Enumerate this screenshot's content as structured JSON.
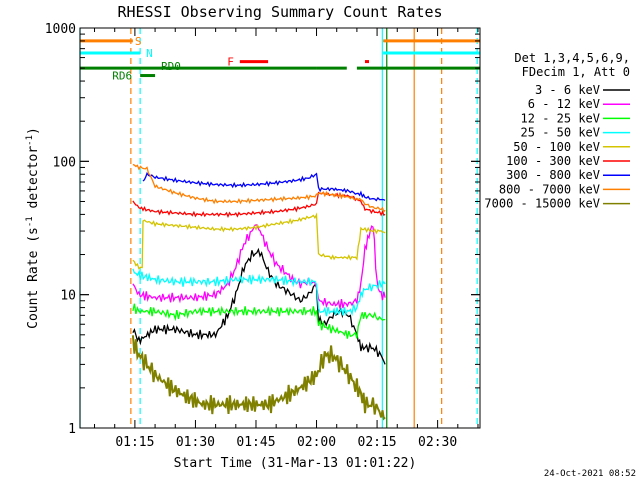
{
  "chart_data": {
    "type": "line",
    "title": "RHESSI Observing Summary Count Rates",
    "xlabel": "Start Time (31-Mar-13 01:01:22)",
    "ylabel_parts": [
      "Count Rate (s",
      "-1",
      " detector",
      "-1",
      ")"
    ],
    "yscale": "log",
    "ylim": [
      1,
      1000
    ],
    "xlim_minutes": [
      61.4,
      160.5
    ],
    "x_ticks": [
      {
        "label": "01:15",
        "min": 75
      },
      {
        "label": "01:30",
        "min": 90
      },
      {
        "label": "01:45",
        "min": 105
      },
      {
        "label": "02:00",
        "min": 120
      },
      {
        "label": "02:15",
        "min": 135
      },
      {
        "label": "02:30",
        "min": 150
      }
    ],
    "y_ticks": [
      {
        "label": "1",
        "value": 1
      },
      {
        "label": "10",
        "value": 10
      },
      {
        "label": "100",
        "value": 100
      },
      {
        "label": "1000",
        "value": 1000
      }
    ],
    "legend_header": [
      "Det 1,3,4,5,6,9,",
      "FDecim 1, Att 0"
    ],
    "legend_position": "right",
    "series": [
      {
        "name": "3 - 6 keV",
        "color": "#000000",
        "x": [
          74.5,
          76,
          80,
          85,
          90,
          95,
          98,
          100,
          102,
          104,
          106,
          108,
          110,
          112,
          114,
          116,
          118,
          120,
          120.5,
          122,
          124,
          126,
          128,
          130,
          131,
          132,
          134,
          136,
          137
        ],
        "y": [
          5.5,
          4.5,
          5.5,
          5.5,
          5.0,
          5.0,
          7.0,
          10,
          16,
          20,
          21,
          15,
          12,
          11,
          10,
          9,
          10,
          12,
          6.5,
          6.0,
          7.0,
          7.5,
          7.0,
          5.0,
          4.0,
          4.0,
          4.0,
          3.5,
          3.0
        ]
      },
      {
        "name": "6 - 12 keV",
        "color": "#ff00ff",
        "x": [
          74.5,
          76,
          80,
          85,
          90,
          95,
          98,
          100,
          102,
          104,
          105,
          106,
          108,
          110,
          112,
          114,
          116,
          118,
          120,
          120.5,
          124,
          128,
          130,
          131,
          132,
          133,
          134,
          135,
          136,
          137
        ],
        "y": [
          12,
          10,
          9.5,
          9.5,
          9.5,
          10,
          12,
          16,
          24,
          30,
          34,
          30,
          22,
          17,
          15,
          13,
          12,
          12.5,
          12,
          9.0,
          8.5,
          8.5,
          9.0,
          12,
          22,
          28,
          34,
          12,
          10,
          9.5
        ]
      },
      {
        "name": "12 - 25 keV",
        "color": "#00ff00",
        "x": [
          74.5,
          76,
          80,
          85,
          90,
          95,
          100,
          105,
          110,
          115,
          120,
          120.5,
          124,
          128,
          130,
          131,
          132,
          134,
          136,
          137
        ],
        "y": [
          8.0,
          7.5,
          7.5,
          7.0,
          7.5,
          7.5,
          7.5,
          7.5,
          7.5,
          7.5,
          7.5,
          6.0,
          5.5,
          5.0,
          5.0,
          7.0,
          7.0,
          7.0,
          6.5,
          6.5
        ]
      },
      {
        "name": "25 - 50 keV",
        "color": "#00ffff",
        "x": [
          74.5,
          76,
          80,
          85,
          90,
          95,
          100,
          105,
          110,
          115,
          120,
          120.5,
          124,
          128,
          130,
          131,
          132,
          134,
          136,
          137
        ],
        "y": [
          15,
          14,
          13,
          12.5,
          12.5,
          12.5,
          13,
          13,
          13,
          12.5,
          12.5,
          7.5,
          7.5,
          7.5,
          8.0,
          10,
          11,
          11.5,
          12,
          12
        ]
      },
      {
        "name": "50 - 100 keV",
        "color": "#d4c400",
        "x": [
          74.5,
          76,
          76.8,
          77,
          80,
          85,
          90,
          95,
          100,
          105,
          110,
          115,
          118,
          120,
          120.5,
          124,
          128,
          130,
          131,
          132,
          134,
          136,
          137
        ],
        "y": [
          18,
          16,
          16,
          36,
          34,
          33,
          32,
          31,
          31,
          32,
          34,
          36,
          38,
          39,
          20,
          19,
          19,
          19,
          31,
          31,
          30,
          30,
          29
        ]
      },
      {
        "name": "100 - 300 keV",
        "color": "#ff0000",
        "x": [
          74.5,
          76,
          77,
          80,
          85,
          90,
          95,
          100,
          105,
          110,
          115,
          118,
          120,
          120.5,
          124,
          128,
          130,
          131,
          132,
          134,
          136,
          137
        ],
        "y": [
          50,
          45,
          44,
          42,
          41,
          40,
          40,
          40,
          41,
          42,
          44,
          46,
          48,
          58,
          56,
          55,
          52,
          50,
          44,
          42,
          41,
          40
        ]
      },
      {
        "name": "300 - 800 keV",
        "color": "#0000ff",
        "x": [
          77,
          78,
          80,
          85,
          90,
          95,
          100,
          105,
          110,
          115,
          118,
          120,
          120.5,
          124,
          128,
          130,
          131,
          132,
          134,
          136,
          137
        ],
        "y": [
          70,
          80,
          76,
          72,
          69,
          67,
          66,
          67,
          69,
          72,
          75,
          80,
          62,
          62,
          60,
          57,
          57,
          54,
          52,
          52,
          51
        ]
      },
      {
        "name": "800 - 7000 keV",
        "color": "#ff7f00",
        "x": [
          74.5,
          76,
          78,
          80,
          85,
          90,
          95,
          100,
          105,
          110,
          115,
          118,
          120,
          120.5,
          124,
          128,
          130,
          131,
          132,
          134,
          136,
          137
        ],
        "y": [
          95,
          90,
          88,
          65,
          58,
          53,
          50,
          50,
          51,
          52,
          53,
          54,
          55,
          58,
          56,
          54,
          52,
          52,
          48,
          45,
          44,
          43
        ]
      },
      {
        "name": "7000 - 15000 keV",
        "color": "#808000",
        "x": [
          74.5,
          76,
          78,
          80,
          84,
          88,
          92,
          96,
          100,
          104,
          108,
          112,
          116,
          120,
          122,
          124,
          126,
          128,
          130,
          131,
          132,
          134,
          136,
          137
        ],
        "y": [
          4.5,
          3.5,
          3.0,
          2.5,
          2.0,
          1.7,
          1.5,
          1.5,
          1.5,
          1.5,
          1.5,
          1.7,
          2.0,
          2.5,
          3.5,
          3.5,
          3.0,
          2.5,
          2.0,
          1.8,
          1.5,
          1.5,
          1.3,
          1.2
        ]
      }
    ],
    "flag_bars": [
      {
        "name": "S",
        "color": "#ff7f00",
        "level": 800,
        "segments": [
          [
            61.4,
            74.5
          ],
          [
            136.5,
            160.5
          ]
        ]
      },
      {
        "name": "N",
        "color": "#00ffff",
        "level": 650,
        "segments": [
          [
            61.4,
            76.3
          ],
          [
            136.5,
            160.5
          ]
        ]
      },
      {
        "name": "F",
        "color": "#ff0000",
        "level": 560,
        "segments": [
          [
            101,
            108
          ],
          [
            132,
            133
          ]
        ]
      },
      {
        "name": "RD0",
        "color": "#008000",
        "level": 500,
        "segments": [
          [
            61.4,
            120
          ],
          [
            120,
            127.5
          ],
          [
            130,
            160.5
          ]
        ]
      },
      {
        "name": "RD6",
        "color": "#008000",
        "level": 440,
        "segments": [
          [
            76.3,
            80
          ]
        ]
      }
    ],
    "vertical_markers": [
      {
        "min": 61.4,
        "color": "#00ffff",
        "style": "solid"
      },
      {
        "min": 74.0,
        "color": "#ff7f00",
        "style": "dashed"
      },
      {
        "min": 76.3,
        "color": "#00ffff",
        "style": "dashed"
      },
      {
        "min": 136.3,
        "color": "#00ffff",
        "style": "solid"
      },
      {
        "min": 137.4,
        "color": "#008000",
        "style": "solid"
      },
      {
        "min": 144.2,
        "color": "#ff7f00",
        "style": "solid"
      },
      {
        "min": 151.0,
        "color": "#ff7f00",
        "style": "dashed"
      },
      {
        "min": 159.8,
        "color": "#00ffff",
        "style": "dashed"
      }
    ],
    "timestamp": "24-Oct-2021 08:52"
  }
}
